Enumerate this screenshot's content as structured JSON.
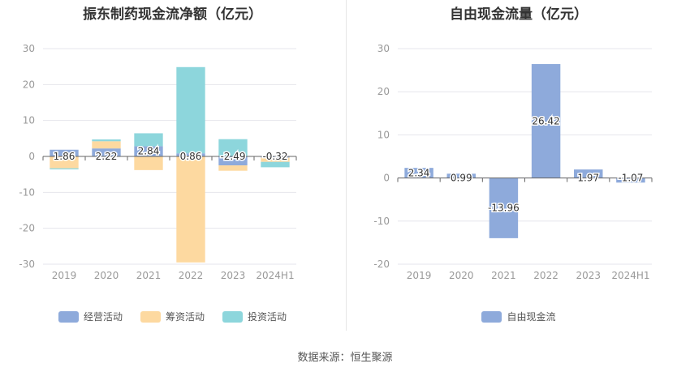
{
  "colors": {
    "operating": "#8eaadb",
    "financing": "#fdd9a0",
    "investing": "#8dd6dc",
    "axis_text": "#999999",
    "grid": "#e6e6ec",
    "label": "#333333"
  },
  "source": "数据来源：恒生聚源",
  "chart_data": [
    {
      "type": "bar",
      "stacked": true,
      "title": "振东制药现金流净额（亿元）",
      "categories": [
        "2019",
        "2020",
        "2021",
        "2022",
        "2023",
        "2024H1"
      ],
      "ylim": [
        -30,
        30
      ],
      "yticks": [
        -30,
        -20,
        -10,
        0,
        10,
        20,
        30
      ],
      "series": [
        {
          "key": "operating",
          "name": "经营活动",
          "values": [
            1.86,
            2.22,
            2.84,
            0.86,
            -2.49,
            -0.32
          ]
        },
        {
          "key": "financing",
          "name": "筹资活动",
          "values": [
            -3.3,
            2.0,
            -3.8,
            -29.5,
            -1.5,
            -1.2
          ]
        },
        {
          "key": "investing",
          "name": "投资活动",
          "values": [
            -0.3,
            0.5,
            3.6,
            24.0,
            4.8,
            -1.5
          ]
        }
      ],
      "data_labels": [
        "1.86",
        "2.22",
        "2.84",
        "0.86",
        "-2.49",
        "-0.32"
      ],
      "legend": [
        "经营活动",
        "筹资活动",
        "投资活动"
      ]
    },
    {
      "type": "bar",
      "title": "自由现金流量（亿元）",
      "categories": [
        "2019",
        "2020",
        "2021",
        "2022",
        "2023",
        "2024H1"
      ],
      "ylim": [
        -20,
        30
      ],
      "yticks": [
        -20,
        -10,
        0,
        10,
        20,
        30
      ],
      "series": [
        {
          "key": "operating",
          "name": "自由现金流",
          "values": [
            2.34,
            0.99,
            -13.96,
            26.42,
            1.97,
            -1.07
          ]
        }
      ],
      "data_labels": [
        "2.34",
        "0.99",
        "-13.96",
        "26.42",
        "1.97",
        "-1.07"
      ],
      "legend": [
        "自由现金流"
      ]
    }
  ]
}
